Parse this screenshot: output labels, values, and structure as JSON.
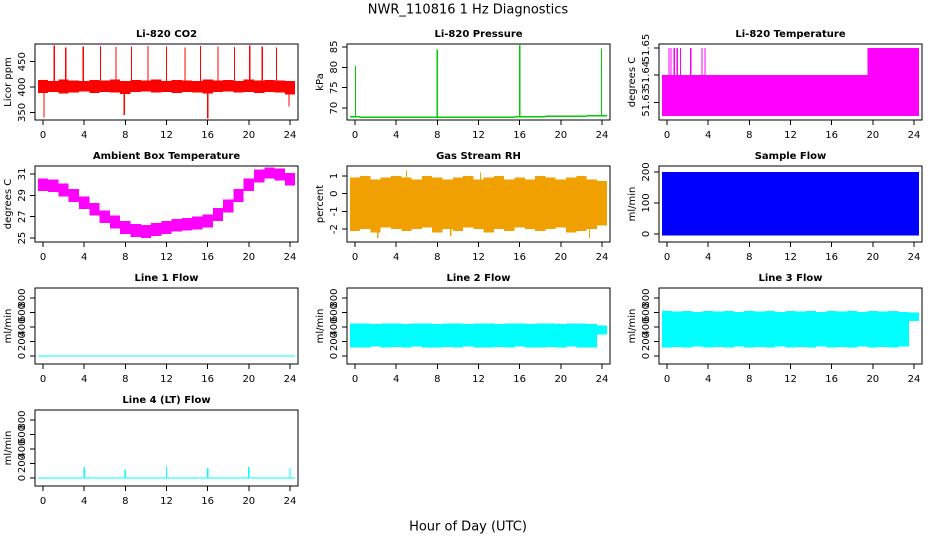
{
  "title": "NWR_110816  1 Hz Diagnostics",
  "xlabel": "Hour of Day (UTC)",
  "chart_data": [
    {
      "type": "band",
      "title": "Li-820 CO2",
      "ylabel": "Licor ppm",
      "color": "#ff0000",
      "xlim": [
        -0.78,
        24.78
      ],
      "xticks": [
        0,
        4,
        8,
        12,
        16,
        20,
        24
      ],
      "ylim": [
        335,
        485
      ],
      "yticks": [
        350,
        400,
        450
      ],
      "x": [
        0,
        1,
        2,
        3,
        4,
        5,
        6,
        7,
        8,
        9,
        10,
        11,
        12,
        13,
        14,
        15,
        16,
        17,
        18,
        19,
        20,
        21,
        22,
        23,
        24
      ],
      "low": [
        388,
        390,
        387,
        389,
        391,
        388,
        390,
        389,
        386,
        390,
        391,
        389,
        390,
        388,
        390,
        389,
        387,
        390,
        391,
        389,
        390,
        388,
        390,
        389,
        385
      ],
      "high": [
        414,
        412,
        415,
        413,
        412,
        414,
        413,
        415,
        412,
        414,
        413,
        415,
        412,
        414,
        413,
        412,
        415,
        413,
        414,
        412,
        415,
        413,
        414,
        413,
        412
      ],
      "spikes_x": [
        0.1,
        1.1,
        2.2,
        3.9,
        5.6,
        7.1,
        7.9,
        8.6,
        10.2,
        12.0,
        13.8,
        15.3,
        16.0,
        17.0,
        18.6,
        20.1,
        21.3,
        22.7,
        23.9
      ],
      "spikes": [
        340,
        482,
        478,
        480,
        481,
        479,
        345,
        480,
        481,
        480,
        478,
        481,
        338,
        480,
        479,
        482,
        480,
        478,
        362
      ]
    },
    {
      "type": "band",
      "title": "Li-820 Pressure",
      "ylabel": "kPa",
      "color": "#00cc00",
      "xlim": [
        -0.78,
        24.78
      ],
      "xticks": [
        0,
        4,
        8,
        12,
        16,
        20,
        24
      ],
      "ylim": [
        67.1,
        85.7
      ],
      "yticks": [
        70,
        75,
        80,
        85
      ],
      "x": [
        0,
        1,
        2,
        3,
        4,
        5,
        6,
        7,
        8,
        9,
        10,
        11,
        12,
        13,
        14,
        15,
        16,
        17,
        18,
        19,
        20,
        21,
        22,
        23,
        24
      ],
      "low": [
        67.7,
        67.6,
        67.6,
        67.6,
        67.6,
        67.6,
        67.6,
        67.6,
        67.6,
        67.6,
        67.6,
        67.6,
        67.6,
        67.6,
        67.6,
        67.6,
        67.7,
        67.7,
        67.7,
        67.8,
        67.8,
        67.8,
        67.8,
        67.9,
        67.9
      ],
      "high": [
        68.1,
        68.0,
        68.0,
        68.0,
        68.0,
        68.0,
        68.0,
        68.0,
        68.0,
        68.0,
        68.0,
        68.0,
        68.0,
        68.0,
        68.0,
        68.0,
        68.1,
        68.1,
        68.1,
        68.2,
        68.2,
        68.2,
        68.2,
        68.3,
        68.3
      ],
      "spikes_x": [
        0.05,
        8.0,
        16.0,
        23.95
      ],
      "spikes": [
        80.3,
        84.3,
        85.4,
        84.6
      ]
    },
    {
      "type": "band",
      "title": "Li-820 Temperature",
      "ylabel": "degrees C",
      "color": "#ff00ff",
      "xlim": [
        -0.78,
        24.78
      ],
      "xticks": [
        0,
        4,
        8,
        12,
        16,
        20,
        24
      ],
      "ylim": [
        51.6235,
        51.6515
      ],
      "yticks": [
        51.63,
        51.64,
        51.65
      ],
      "x": [
        0,
        1,
        2,
        3,
        4,
        5,
        6,
        7,
        8,
        9,
        10,
        11,
        12,
        13,
        14,
        15,
        16,
        17,
        18,
        19,
        20,
        21,
        22,
        23,
        24
      ],
      "low": [
        51.625,
        51.625,
        51.625,
        51.625,
        51.625,
        51.625,
        51.625,
        51.625,
        51.625,
        51.625,
        51.625,
        51.625,
        51.625,
        51.625,
        51.625,
        51.625,
        51.625,
        51.625,
        51.625,
        51.625,
        51.625,
        51.625,
        51.625,
        51.625,
        51.625
      ],
      "high": [
        51.64,
        51.64,
        51.64,
        51.64,
        51.64,
        51.64,
        51.64,
        51.64,
        51.64,
        51.64,
        51.64,
        51.64,
        51.64,
        51.64,
        51.64,
        51.64,
        51.64,
        51.64,
        51.64,
        51.64,
        51.65,
        51.65,
        51.65,
        51.65,
        51.65
      ],
      "spikes_x": [
        0.2,
        0.4,
        0.7,
        1.0,
        1.3,
        2.3,
        3.4,
        3.7,
        19.7,
        19.9
      ],
      "spikes": [
        51.65,
        51.65,
        51.65,
        51.65,
        51.65,
        51.65,
        51.65,
        51.65,
        51.65,
        51.65
      ]
    },
    {
      "type": "band",
      "title": "Ambient Box Temperature",
      "ylabel": "degrees C",
      "color": "#ff00ff",
      "xlim": [
        -0.78,
        24.78
      ],
      "xticks": [
        0,
        4,
        8,
        12,
        16,
        20,
        24
      ],
      "ylim": [
        24.63,
        31.75
      ],
      "yticks": [
        25,
        27,
        29,
        31
      ],
      "x": [
        0,
        1,
        2,
        3,
        4,
        5,
        6,
        7,
        8,
        9,
        10,
        11,
        12,
        13,
        14,
        15,
        16,
        17,
        18,
        19,
        20,
        21,
        22,
        23,
        24
      ],
      "low": [
        29.4,
        29.3,
        28.9,
        28.4,
        27.7,
        27.1,
        26.4,
        25.9,
        25.4,
        25.1,
        25.0,
        25.2,
        25.4,
        25.6,
        25.7,
        25.8,
        26.0,
        26.6,
        27.4,
        28.4,
        29.4,
        30.2,
        30.6,
        30.4,
        29.9
      ],
      "high": [
        30.6,
        30.5,
        30.1,
        29.6,
        28.9,
        28.3,
        27.6,
        27.1,
        26.6,
        26.3,
        26.2,
        26.4,
        26.6,
        26.8,
        26.9,
        27.0,
        27.2,
        27.8,
        28.6,
        29.6,
        30.6,
        31.4,
        31.6,
        31.5,
        31.1
      ],
      "spikes_x": [],
      "spikes": []
    },
    {
      "type": "band",
      "title": "Gas Stream RH",
      "ylabel": "percent",
      "color": "#f0a000",
      "xlim": [
        -0.78,
        24.78
      ],
      "xticks": [
        0,
        4,
        8,
        12,
        16,
        20,
        24
      ],
      "ylim": [
        -2.73,
        1.56
      ],
      "yticks": [
        -2,
        -1,
        0,
        1
      ],
      "x": [
        0,
        1,
        2,
        3,
        4,
        5,
        6,
        7,
        8,
        9,
        10,
        11,
        12,
        13,
        14,
        15,
        16,
        17,
        18,
        19,
        20,
        21,
        22,
        23,
        24
      ],
      "low": [
        -2.1,
        -2.0,
        -2.2,
        -1.9,
        -2.0,
        -2.1,
        -2.0,
        -1.9,
        -2.2,
        -2.0,
        -2.1,
        -1.9,
        -2.0,
        -2.2,
        -2.0,
        -2.1,
        -1.9,
        -2.0,
        -2.1,
        -2.0,
        -1.9,
        -2.2,
        -2.1,
        -2.0,
        -1.8
      ],
      "high": [
        0.9,
        1.0,
        0.8,
        0.9,
        1.0,
        0.9,
        0.8,
        1.0,
        0.9,
        0.8,
        0.9,
        1.0,
        0.8,
        0.9,
        1.0,
        0.8,
        0.9,
        0.8,
        1.0,
        0.9,
        0.8,
        0.9,
        1.0,
        0.8,
        0.7
      ],
      "spikes_x": [
        2.2,
        5.0,
        9.3,
        12.2,
        22.8
      ],
      "spikes": [
        -2.5,
        1.3,
        -2.4,
        1.2,
        -2.5
      ]
    },
    {
      "type": "band",
      "title": "Sample Flow",
      "ylabel": "ml/min",
      "color": "#0000ff",
      "xlim": [
        -0.78,
        24.78
      ],
      "xticks": [
        0,
        4,
        8,
        12,
        16,
        20,
        24
      ],
      "ylim": [
        -26,
        219
      ],
      "yticks": [
        0,
        100,
        200
      ],
      "x": [
        0,
        1,
        2,
        3,
        4,
        5,
        6,
        7,
        8,
        9,
        10,
        11,
        12,
        13,
        14,
        15,
        16,
        17,
        18,
        19,
        20,
        21,
        22,
        23,
        24
      ],
      "low": [
        -5,
        -5,
        -5,
        -5,
        -5,
        -5,
        -5,
        -5,
        -5,
        -5,
        -5,
        -5,
        -5,
        -5,
        -5,
        -5,
        -5,
        -5,
        -5,
        -5,
        -5,
        -5,
        -5,
        -5,
        -5
      ],
      "high": [
        200,
        200,
        200,
        200,
        200,
        200,
        200,
        200,
        200,
        200,
        200,
        200,
        200,
        200,
        200,
        200,
        200,
        200,
        200,
        200,
        200,
        200,
        200,
        200,
        200
      ],
      "spikes_x": [],
      "spikes": []
    },
    {
      "type": "band",
      "title": "Line 1 Flow",
      "ylabel": "ml/min",
      "color": "#00ffff",
      "xlim": [
        -0.78,
        24.78
      ],
      "xticks": [
        0,
        4,
        8,
        12,
        16,
        20,
        24
      ],
      "ylim": [
        -110,
        938
      ],
      "yticks": [
        0,
        200,
        400,
        600,
        800
      ],
      "x": [
        0,
        1,
        2,
        3,
        4,
        5,
        6,
        7,
        8,
        9,
        10,
        11,
        12,
        13,
        14,
        15,
        16,
        17,
        18,
        19,
        20,
        21,
        22,
        23,
        24
      ],
      "low": [
        -10,
        -10,
        -10,
        -10,
        -10,
        -10,
        -10,
        -10,
        -10,
        -10,
        -10,
        -10,
        -10,
        -10,
        -10,
        -10,
        -10,
        -10,
        -10,
        -10,
        -10,
        -10,
        -10,
        -10,
        -10
      ],
      "high": [
        5,
        5,
        5,
        5,
        5,
        5,
        5,
        5,
        5,
        5,
        5,
        5,
        5,
        5,
        5,
        5,
        5,
        5,
        5,
        10,
        10,
        10,
        10,
        5,
        5
      ],
      "spikes_x": [],
      "spikes": []
    },
    {
      "type": "band",
      "title": "Line 2 Flow",
      "ylabel": "ml/min",
      "color": "#00ffff",
      "xlim": [
        -0.78,
        24.78
      ],
      "xticks": [
        0,
        4,
        8,
        12,
        16,
        20,
        24
      ],
      "ylim": [
        -110,
        938
      ],
      "yticks": [
        0,
        200,
        400,
        600,
        800
      ],
      "x": [
        0,
        1,
        2,
        3,
        4,
        5,
        6,
        7,
        8,
        9,
        10,
        11,
        12,
        13,
        14,
        15,
        16,
        17,
        18,
        19,
        20,
        21,
        22,
        23,
        24
      ],
      "low": [
        120,
        120,
        130,
        120,
        125,
        120,
        130,
        120,
        120,
        125,
        120,
        130,
        120,
        120,
        125,
        120,
        130,
        120,
        120,
        125,
        120,
        130,
        120,
        120,
        300
      ],
      "high": [
        450,
        450,
        445,
        450,
        450,
        445,
        450,
        450,
        445,
        450,
        450,
        445,
        450,
        450,
        445,
        450,
        450,
        445,
        450,
        450,
        445,
        450,
        450,
        445,
        420
      ],
      "spikes_x": [],
      "spikes": []
    },
    {
      "type": "band",
      "title": "Line 3 Flow",
      "ylabel": "ml/min",
      "color": "#00ffff",
      "xlim": [
        -0.78,
        24.78
      ],
      "xticks": [
        0,
        4,
        8,
        12,
        16,
        20,
        24
      ],
      "ylim": [
        -110,
        938
      ],
      "yticks": [
        0,
        200,
        400,
        600,
        800
      ],
      "x": [
        0,
        1,
        2,
        3,
        4,
        5,
        6,
        7,
        8,
        9,
        10,
        11,
        12,
        13,
        14,
        15,
        16,
        17,
        18,
        19,
        20,
        21,
        22,
        23,
        24
      ],
      "low": [
        120,
        125,
        120,
        130,
        120,
        125,
        120,
        130,
        120,
        125,
        120,
        130,
        120,
        125,
        120,
        130,
        120,
        125,
        120,
        130,
        120,
        125,
        120,
        130,
        480
      ],
      "high": [
        620,
        615,
        620,
        610,
        620,
        615,
        620,
        610,
        620,
        615,
        620,
        610,
        620,
        615,
        620,
        610,
        620,
        615,
        620,
        610,
        620,
        615,
        620,
        610,
        600
      ],
      "spikes_x": [],
      "spikes": []
    },
    {
      "type": "band",
      "title": "Line 4 (LT) Flow",
      "ylabel": "ml/min",
      "color": "#00ffff",
      "xlim": [
        -0.78,
        24.78
      ],
      "xticks": [
        0,
        4,
        8,
        12,
        16,
        20,
        24
      ],
      "ylim": [
        -110,
        938
      ],
      "yticks": [
        0,
        200,
        400,
        600,
        800
      ],
      "x": [
        0,
        1,
        2,
        3,
        4,
        5,
        6,
        7,
        8,
        9,
        10,
        11,
        12,
        13,
        14,
        15,
        16,
        17,
        18,
        19,
        20,
        21,
        22,
        23,
        24
      ],
      "low": [
        -5,
        -5,
        -5,
        -5,
        -5,
        -5,
        -5,
        -5,
        -5,
        -5,
        -5,
        -5,
        -5,
        -5,
        -5,
        -5,
        -5,
        -5,
        -5,
        -5,
        -5,
        -5,
        -5,
        -5,
        -5
      ],
      "high": [
        5,
        5,
        5,
        5,
        5,
        5,
        5,
        5,
        5,
        5,
        5,
        5,
        5,
        5,
        5,
        5,
        5,
        5,
        5,
        5,
        5,
        5,
        5,
        5,
        5
      ],
      "spikes_x": [
        4,
        8,
        12,
        16,
        20,
        24
      ],
      "spikes": [
        150,
        120,
        160,
        140,
        150,
        140
      ]
    }
  ]
}
